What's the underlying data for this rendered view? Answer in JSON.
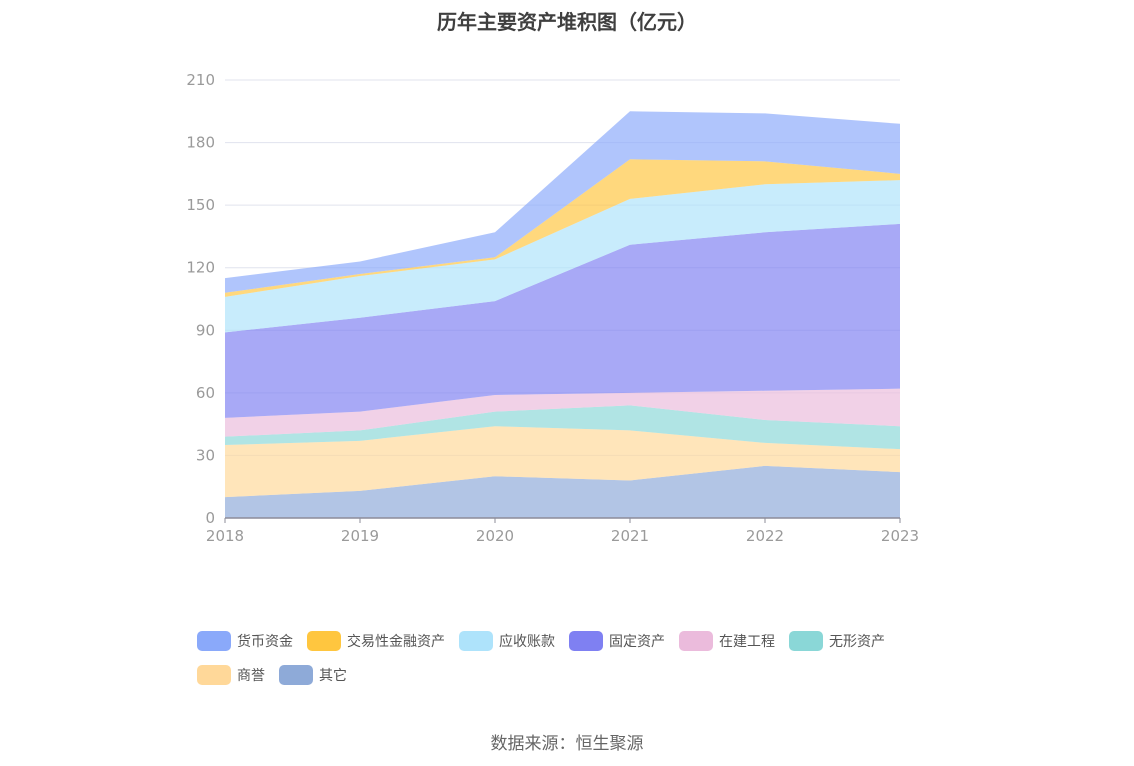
{
  "title": "历年主要资产堆积图（亿元）",
  "source": "数据来源：恒生聚源",
  "chart_data": {
    "type": "area",
    "stacked": true,
    "title": "历年主要资产堆积图（亿元）",
    "x": [
      "2018",
      "2019",
      "2020",
      "2021",
      "2022",
      "2023"
    ],
    "y_ticks": [
      "0",
      "30",
      "60",
      "90",
      "120",
      "150",
      "180",
      "210"
    ],
    "ylim": [
      0,
      210
    ],
    "grid": true,
    "legend_position": "bottom",
    "series": [
      {
        "name": "其它",
        "color": "#8eaad8",
        "values": [
          10,
          13,
          20,
          18,
          25,
          22
        ]
      },
      {
        "name": "商誉",
        "color": "#ffd899",
        "values": [
          25,
          24,
          24,
          24,
          11,
          11
        ]
      },
      {
        "name": "无形资产",
        "color": "#8ad7d7",
        "values": [
          4,
          5,
          7,
          12,
          11,
          11
        ]
      },
      {
        "name": "在建工程",
        "color": "#ebbbdc",
        "values": [
          9,
          9,
          8,
          6,
          14,
          18
        ]
      },
      {
        "name": "固定资产",
        "color": "#7f80f2",
        "values": [
          41,
          45,
          45,
          71,
          76,
          79
        ]
      },
      {
        "name": "应收账款",
        "color": "#aee3fb",
        "values": [
          17,
          20,
          20,
          22,
          23,
          21
        ]
      },
      {
        "name": "交易性金融资产",
        "color": "#ffc63f",
        "values": [
          2,
          1,
          1,
          19,
          11,
          3
        ]
      },
      {
        "name": "货币资金",
        "color": "#8aa9fa",
        "values": [
          7,
          6,
          12,
          23,
          23,
          24
        ]
      }
    ],
    "legend_order": [
      "货币资金",
      "交易性金融资产",
      "应收账款",
      "固定资产",
      "在建工程",
      "无形资产",
      "商誉",
      "其它"
    ]
  }
}
